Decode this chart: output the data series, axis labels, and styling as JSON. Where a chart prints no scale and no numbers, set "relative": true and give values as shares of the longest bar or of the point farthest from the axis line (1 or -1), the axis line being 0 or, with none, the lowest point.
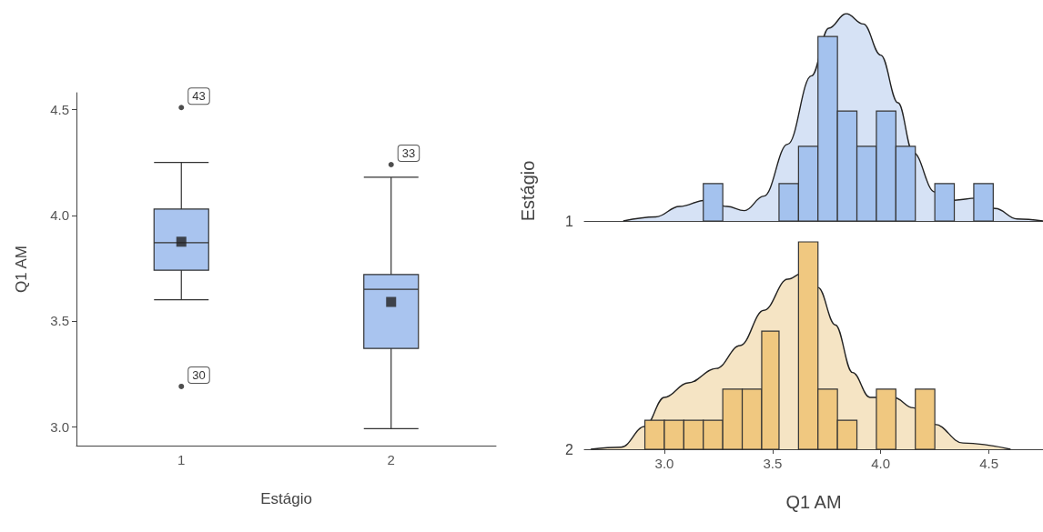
{
  "chart_data": [
    {
      "type": "box",
      "categories": [
        "1",
        "2"
      ],
      "xlabel": "Estágio",
      "ylabel": "Q1 AM",
      "color": "#a9c4ef",
      "ylim": [
        2.91,
        4.58
      ],
      "yticks": [
        {
          "value": 3,
          "label": "3.0"
        },
        3.5,
        {
          "value": 4,
          "label": "4.0"
        },
        4.5
      ],
      "boxes": [
        {
          "low": 3.6,
          "q1": 3.74,
          "median": 3.87,
          "q3": 4.03,
          "high": 4.25,
          "mean": 3.875,
          "outliers": [
            4.51,
            3.19
          ]
        },
        {
          "low": 2.99,
          "q1": 3.37,
          "median": 3.65,
          "q3": 3.72,
          "high": 4.18,
          "mean": 3.59,
          "outliers": [
            4.24
          ]
        }
      ],
      "annotations": [
        "43",
        "30",
        "33"
      ]
    },
    {
      "type": "histogram",
      "relative": true,
      "xlim": [
        2.63,
        4.75
      ],
      "tick_labels": false,
      "color": "#a4c2ee",
      "annotations": [
        "1"
      ],
      "bins": [
        3.18,
        3.27,
        3.53,
        3.62,
        3.71,
        3.8,
        3.89,
        3.98,
        4.07,
        4.16,
        4.25,
        4.34,
        4.43,
        4.52
      ],
      "values": [
        0.18,
        0,
        0.18,
        0.36,
        0.89,
        0.53,
        0.36,
        0.53,
        0.36,
        0,
        0.18,
        0,
        0.18
      ],
      "series": [
        {
          "type": "area",
          "color": "#d6e2f5",
          "x": [
            2.81,
            2.96,
            3.07,
            3.19,
            3.29,
            3.37,
            3.46,
            3.57,
            3.68,
            3.76,
            3.84,
            3.92,
            4.0,
            4.08,
            4.15,
            4.25,
            4.34,
            4.44,
            4.53,
            4.63,
            4.75
          ],
          "values": [
            0,
            0.02,
            0.07,
            0.1,
            0.07,
            0.05,
            0.12,
            0.37,
            0.7,
            0.93,
            1,
            0.95,
            0.8,
            0.57,
            0.33,
            0.14,
            0.1,
            0.11,
            0.06,
            0.01,
            0
          ]
        }
      ]
    },
    {
      "type": "histogram",
      "relative": true,
      "xlim": [
        2.63,
        4.75
      ],
      "tick_labels": "x",
      "xlabel": "Q1 AM",
      "ylabel": "Estágio",
      "color": "#f0c880",
      "annotations": [
        "2"
      ],
      "xticks": [
        {
          "value": 3,
          "label": "3.0"
        },
        3.5,
        {
          "value": 4,
          "label": "4.0"
        },
        4.5
      ],
      "bins": [
        2.91,
        3.0,
        3.09,
        3.18,
        3.27,
        3.36,
        3.45,
        3.53,
        3.62,
        3.71,
        3.8,
        3.89,
        3.98,
        4.07,
        4.16,
        4.25
      ],
      "values": [
        0.14,
        0.14,
        0.14,
        0.14,
        0.29,
        0.29,
        0.57,
        0,
        1,
        0.29,
        0.14,
        0,
        0.29,
        0,
        0.29
      ],
      "series": [
        {
          "type": "area",
          "color": "#f5e4c4",
          "x": [
            2.66,
            2.8,
            2.91,
            3.0,
            3.11,
            3.24,
            3.35,
            3.46,
            3.57,
            3.64,
            3.71,
            3.79,
            3.87,
            3.95,
            4.06,
            4.15,
            4.25,
            4.38,
            4.6
          ],
          "values": [
            0,
            0.01,
            0.11,
            0.25,
            0.32,
            0.39,
            0.5,
            0.67,
            0.82,
            0.85,
            0.78,
            0.6,
            0.37,
            0.25,
            0.25,
            0.2,
            0.12,
            0.03,
            0
          ]
        }
      ]
    }
  ]
}
